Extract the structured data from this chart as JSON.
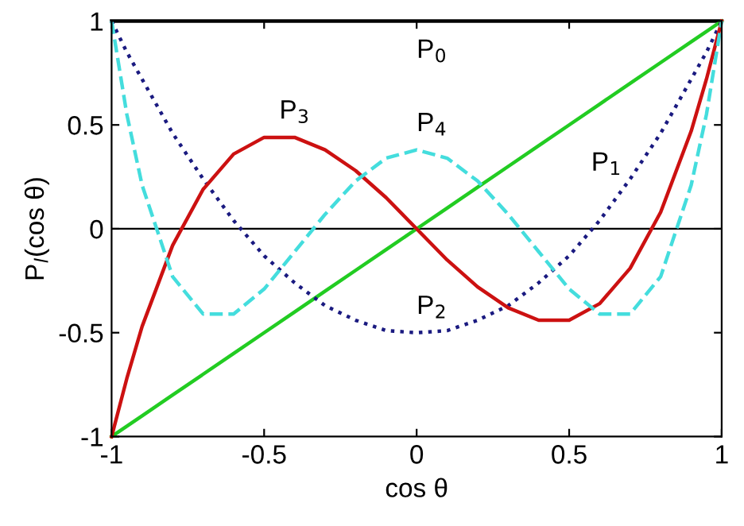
{
  "chart_data": {
    "type": "line",
    "xlabel": "cos θ",
    "ylabel": "P$_{l}$(cos θ)",
    "x": [
      -1,
      -0.95,
      -0.9,
      -0.8,
      -0.7,
      -0.6,
      -0.5,
      -0.4,
      -0.3,
      -0.2,
      -0.1,
      0,
      0.1,
      0.2,
      0.3,
      0.4,
      0.5,
      0.6,
      0.7,
      0.8,
      0.9,
      0.95,
      1
    ],
    "series": [
      {
        "color": "#000000",
        "line_style": "solid",
        "values": [
          1,
          1,
          1,
          1,
          1,
          1,
          1,
          1,
          1,
          1,
          1,
          1,
          1,
          1,
          1,
          1,
          1,
          1,
          1,
          1,
          1,
          1,
          1
        ]
      },
      {
        "color": "#22cc22",
        "line_style": "solid",
        "values": [
          -1,
          -0.95,
          -0.9,
          -0.8,
          -0.7,
          -0.6,
          -0.5,
          -0.4,
          -0.3,
          -0.2,
          -0.1,
          0,
          0.1,
          0.2,
          0.3,
          0.4,
          0.5,
          0.6,
          0.7,
          0.8,
          0.9,
          0.95,
          1
        ]
      },
      {
        "color": "#1a1a80",
        "line_style": "dotted",
        "values": [
          1,
          0.85,
          0.72,
          0.46,
          0.24,
          0.04,
          -0.13,
          -0.26,
          -0.37,
          -0.44,
          -0.49,
          -0.5,
          -0.49,
          -0.44,
          -0.37,
          -0.26,
          -0.13,
          0.04,
          0.24,
          0.46,
          0.72,
          0.85,
          1
        ]
      },
      {
        "color": "#cc1111",
        "line_style": "solid",
        "values": [
          -1,
          -0.72,
          -0.47,
          -0.08,
          0.19,
          0.36,
          0.44,
          0.44,
          0.38,
          0.28,
          0.15,
          0,
          -0.15,
          -0.28,
          -0.38,
          -0.44,
          -0.44,
          -0.36,
          -0.19,
          0.08,
          0.47,
          0.72,
          1
        ]
      },
      {
        "color": "#44dddd",
        "line_style": "dashed",
        "values": [
          1,
          0.55,
          0.21,
          -0.23,
          -0.41,
          -0.41,
          -0.29,
          -0.11,
          0.07,
          0.23,
          0.34,
          0.38,
          0.34,
          0.23,
          0.07,
          -0.11,
          -0.29,
          -0.41,
          -0.41,
          -0.23,
          0.21,
          0.55,
          1
        ]
      }
    ],
    "annotations": [
      {
        "text": "P$_{0}$",
        "x": 0,
        "y": 1
      },
      {
        "text": "P$_{1}$",
        "x": 0.5,
        "y": 0.5
      },
      {
        "text": "P$_{2}$",
        "x": 0,
        "y": -0.5
      },
      {
        "text": "P$_{3}$",
        "x": -0.45,
        "y": 0.44
      },
      {
        "text": "P$_{4}$",
        "x": 0,
        "y": 0.38
      }
    ],
    "ref_lines": [
      {
        "axis": "y",
        "value": 0,
        "color": "#000000",
        "line_style": "solid"
      }
    ],
    "xlim": [
      -1,
      1
    ],
    "ylim": [
      -1,
      1
    ],
    "xticks": [
      -1,
      -0.5,
      0,
      0.5,
      1
    ],
    "yticks": [
      -1,
      -0.5,
      0,
      0.5,
      1
    ],
    "grid": false,
    "legend": false,
    "marker": "none"
  }
}
